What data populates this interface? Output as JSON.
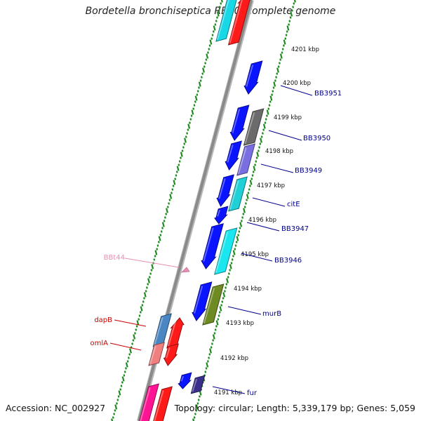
{
  "title": "Bordetella bronchiseptica RB50, complete genome",
  "footer": {
    "accession": "Accession: NC_002927",
    "summary": "Topology: circular; Length: 5,339,179 bp; Genes: 5,059"
  },
  "colors": {
    "backbone": "#8a8a8a",
    "tick_ring": "#1e8a1e",
    "scale_text": "#111111",
    "gene_label": "#00008b",
    "red_label": "#cc0000",
    "rna_label": "#e58fb4"
  },
  "scale": {
    "unit": "kbp",
    "ticks": [
      {
        "value": 4201,
        "label": "4201 kbp"
      },
      {
        "value": 4200,
        "label": "4200 kbp"
      },
      {
        "value": 4199,
        "label": "4199 kbp"
      },
      {
        "value": 4198,
        "label": "4198 kbp"
      },
      {
        "value": 4197,
        "label": "4197 kbp"
      },
      {
        "value": 4196,
        "label": "4196 kbp"
      },
      {
        "value": 4195,
        "label": "4195 kbp"
      },
      {
        "value": 4194,
        "label": "4194 kbp"
      },
      {
        "value": 4193,
        "label": "4193 kbp"
      },
      {
        "value": 4192,
        "label": "4192 kbp"
      },
      {
        "value": 4191,
        "label": "4191 kbp"
      }
    ]
  },
  "gene_labels": [
    {
      "name": "BB3951",
      "color": "#00008b"
    },
    {
      "name": "BB3950",
      "color": "#00008b"
    },
    {
      "name": "BB3949",
      "color": "#00008b"
    },
    {
      "name": "citE",
      "color": "#00008b"
    },
    {
      "name": "BB3947",
      "color": "#00008b"
    },
    {
      "name": "BB3946",
      "color": "#00008b"
    },
    {
      "name": "murB",
      "color": "#00008b"
    },
    {
      "name": "fur",
      "color": "#00008b"
    },
    {
      "name": "BBt44",
      "color": "#e58fb4"
    },
    {
      "name": "dapB",
      "color": "#cc0000"
    },
    {
      "name": "omlA",
      "color": "#cc0000"
    }
  ]
}
